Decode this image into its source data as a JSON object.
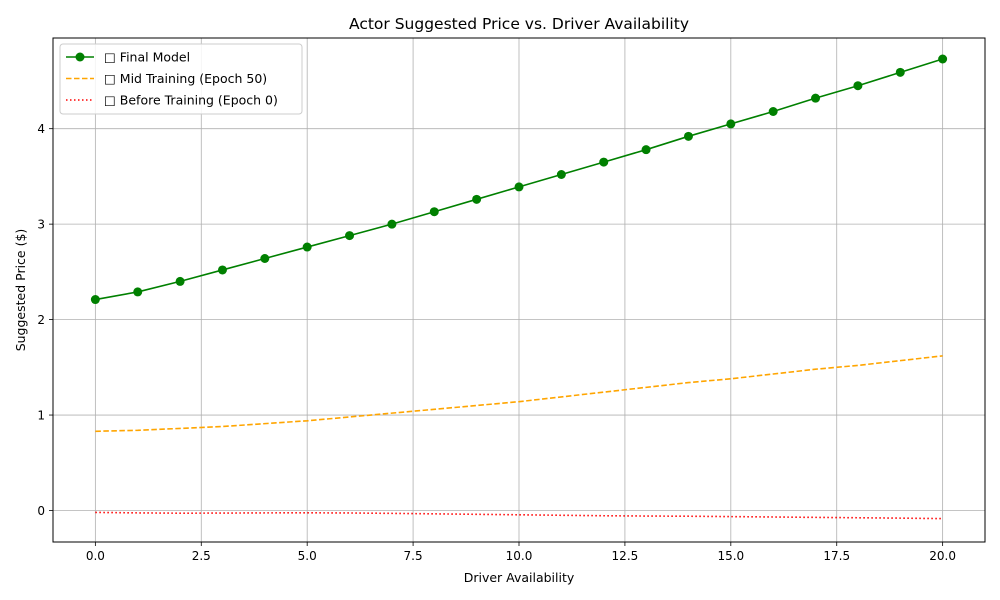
{
  "chart_data": {
    "type": "line",
    "title": "Actor Suggested Price vs. Driver Availability",
    "xlabel": "Driver Availability",
    "ylabel": "Suggested Price ($)",
    "xlim": [
      -1,
      21
    ],
    "ylim": [
      -0.33,
      4.95
    ],
    "xticks": [
      0,
      2.5,
      5,
      7.5,
      10,
      12.5,
      15,
      17.5,
      20
    ],
    "xtick_labels": [
      "0.0",
      "2.5",
      "5.0",
      "7.5",
      "10.0",
      "12.5",
      "15.0",
      "17.5",
      "20.0"
    ],
    "yticks": [
      0,
      1,
      2,
      3,
      4
    ],
    "ytick_labels": [
      "0",
      "1",
      "2",
      "3",
      "4"
    ],
    "grid": true,
    "legend_position": "top-left",
    "x": [
      0,
      1,
      2,
      3,
      4,
      5,
      6,
      7,
      8,
      9,
      10,
      11,
      12,
      13,
      14,
      15,
      16,
      17,
      18,
      19,
      20
    ],
    "series": [
      {
        "name": "□ Final Model",
        "color": "#008000",
        "style": "solid",
        "marker": "circle",
        "values": [
          2.21,
          2.29,
          2.4,
          2.52,
          2.64,
          2.76,
          2.88,
          3.0,
          3.13,
          3.26,
          3.39,
          3.52,
          3.65,
          3.78,
          3.92,
          4.05,
          4.18,
          4.32,
          4.45,
          4.59,
          4.73
        ]
      },
      {
        "name": "□ Mid Training (Epoch 50)",
        "color": "#ffa500",
        "style": "dashed",
        "marker": "none",
        "values": [
          0.83,
          0.84,
          0.86,
          0.88,
          0.91,
          0.94,
          0.98,
          1.02,
          1.06,
          1.1,
          1.14,
          1.19,
          1.24,
          1.29,
          1.34,
          1.38,
          1.43,
          1.48,
          1.52,
          1.57,
          1.62
        ]
      },
      {
        "name": "□ Before Training (Epoch 0)",
        "color": "#ff0000",
        "style": "dotted",
        "marker": "none",
        "values": [
          -0.02,
          -0.025,
          -0.028,
          -0.027,
          -0.025,
          -0.024,
          -0.026,
          -0.03,
          -0.035,
          -0.04,
          -0.045,
          -0.05,
          -0.055,
          -0.058,
          -0.06,
          -0.064,
          -0.068,
          -0.072,
          -0.076,
          -0.08,
          -0.085
        ]
      }
    ]
  }
}
